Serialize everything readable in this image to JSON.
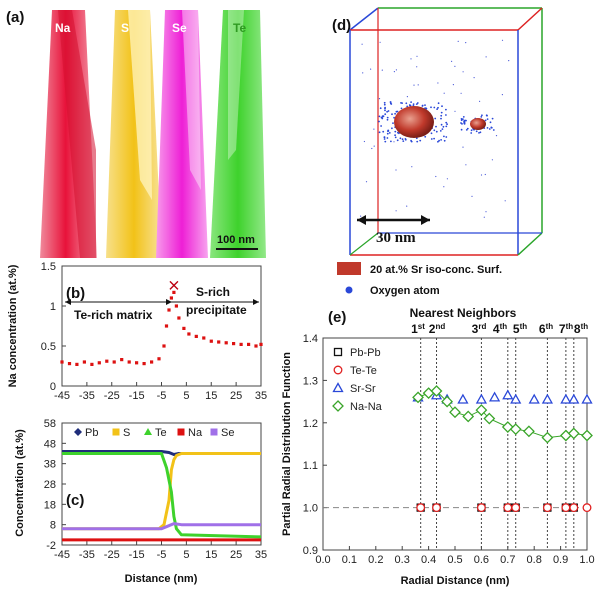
{
  "colors": {
    "Na": "#e8123a",
    "S": "#f2c218",
    "Se": "#ee1fd6",
    "Te": "#3ed22c",
    "Pb": "#1f2d7a",
    "red_series": "#dd1111",
    "blue_marker": "#2a48d8",
    "green_marker": "#3aa52a",
    "precip": "#c0392b"
  },
  "panel_a": {
    "label": "(a)",
    "columns": [
      "Na",
      "S",
      "Se",
      "Te"
    ],
    "scale_bar": "100 nm"
  },
  "panel_d": {
    "label": "(d)",
    "scale_bar": "30 nm",
    "legend": [
      "20 at.% Sr iso-conc. Surf.",
      "Oxygen atom"
    ]
  },
  "chart_data": [
    {
      "type": "scatter",
      "panel": "(b)",
      "ylabel": "Na concentration (at.%)",
      "ylim": [
        0,
        1.5
      ],
      "xlim": [
        -45,
        35
      ],
      "xticks": [
        -45,
        -35,
        -25,
        -15,
        -5,
        5,
        15,
        25,
        35
      ],
      "yticks": [
        "0",
        "0.5",
        "1",
        "1.5"
      ],
      "annotations": [
        "Te-rich matrix",
        "S-rich precipitate"
      ],
      "series": [
        {
          "color": "#dd1111",
          "x": [
            -45,
            -42,
            -39,
            -36,
            -33,
            -30,
            -27,
            -24,
            -21,
            -18,
            -15,
            -12,
            -9,
            -6,
            -4,
            -3,
            -2,
            -1,
            0,
            1,
            2,
            4,
            6,
            9,
            12,
            15,
            18,
            21,
            24,
            27,
            30,
            33,
            35
          ],
          "y": [
            0.3,
            0.28,
            0.27,
            0.3,
            0.27,
            0.29,
            0.31,
            0.3,
            0.33,
            0.3,
            0.29,
            0.28,
            0.3,
            0.34,
            0.5,
            0.75,
            0.95,
            1.1,
            1.17,
            1.0,
            0.85,
            0.72,
            0.65,
            0.62,
            0.6,
            0.56,
            0.55,
            0.54,
            0.53,
            0.52,
            0.52,
            0.5,
            0.52
          ]
        }
      ]
    },
    {
      "type": "line",
      "panel": "(c)",
      "xlabel": "Distance (nm)",
      "ylabel": "Concentration (at.%)",
      "ylim": [
        -2,
        58
      ],
      "xlim": [
        -45,
        35
      ],
      "xticks": [
        -45,
        -35,
        -25,
        -15,
        -5,
        5,
        15,
        25,
        35
      ],
      "yticks": [
        -2,
        8,
        18,
        28,
        38,
        48,
        58
      ],
      "series": [
        {
          "name": "Pb",
          "color": "#1f2d7a",
          "x": [
            -45,
            -5,
            -2,
            0,
            2,
            35
          ],
          "y": [
            44,
            44,
            43.5,
            42.5,
            43,
            43
          ]
        },
        {
          "name": "S",
          "color": "#f2c218",
          "x": [
            -45,
            -6,
            -4,
            -2,
            -1,
            0,
            1,
            3,
            35
          ],
          "y": [
            6,
            6,
            8,
            20,
            35,
            40,
            42,
            43,
            43
          ]
        },
        {
          "name": "Te",
          "color": "#3ed22c",
          "x": [
            -45,
            -5,
            -3,
            -1,
            0,
            1,
            3,
            35
          ],
          "y": [
            43,
            43,
            36,
            24,
            12,
            6,
            3,
            2
          ]
        },
        {
          "name": "Na",
          "color": "#dd1111",
          "x": [
            -45,
            35
          ],
          "y": [
            0.5,
            0.5
          ]
        },
        {
          "name": "Se",
          "color": "#a070e8",
          "x": [
            -45,
            -5,
            -3,
            0,
            3,
            35
          ],
          "y": [
            6,
            6,
            7,
            8.5,
            8,
            8
          ]
        }
      ]
    },
    {
      "type": "scatter",
      "panel": "(e)",
      "xlabel": "Radial Distance (nm)",
      "ylabel": "Partial Radial Distribution Function",
      "xlim": [
        0,
        1.0
      ],
      "ylim": [
        0.9,
        1.4
      ],
      "xticks": [
        "0.0",
        "0.1",
        "0.2",
        "0.3",
        "0.4",
        "0.5",
        "0.6",
        "0.7",
        "0.8",
        "0.9",
        "1.0"
      ],
      "yticks": [
        "0.9",
        "1.0",
        "1.1",
        "1.2",
        "1.3",
        "1.4"
      ],
      "neighbors_title": "Nearest Neighbors",
      "neighbors": [
        {
          "n": "1",
          "sup": "st",
          "x": 0.37
        },
        {
          "n": "2",
          "sup": "nd",
          "x": 0.43
        },
        {
          "n": "3",
          "sup": "rd",
          "x": 0.6
        },
        {
          "n": "4",
          "sup": "th",
          "x": 0.7
        },
        {
          "n": "5",
          "sup": "th",
          "x": 0.73
        },
        {
          "n": "6",
          "sup": "th",
          "x": 0.85
        },
        {
          "n": "7",
          "sup": "th",
          "x": 0.92
        },
        {
          "n": "8",
          "sup": "th",
          "x": 0.95
        }
      ],
      "series": [
        {
          "name": "Pb-Pb",
          "marker": "square",
          "color": "#111111",
          "x": [
            0.37,
            0.43,
            0.6,
            0.7,
            0.73,
            0.85,
            0.92,
            0.95
          ],
          "y": [
            1.0,
            1.0,
            1.0,
            1.0,
            1.0,
            1.0,
            1.0,
            1.0
          ]
        },
        {
          "name": "Te-Te",
          "marker": "circle",
          "color": "#e02020",
          "x": [
            0.37,
            0.43,
            0.6,
            0.7,
            0.73,
            0.85,
            0.92,
            0.95,
            1.0
          ],
          "y": [
            1.0,
            1.0,
            1.0,
            1.0,
            1.0,
            1.0,
            1.0,
            1.0,
            1.0
          ]
        },
        {
          "name": "Sr-Sr",
          "marker": "triangle",
          "color": "#2a48d8",
          "x": [
            0.36,
            0.43,
            0.47,
            0.53,
            0.6,
            0.65,
            0.7,
            0.73,
            0.8,
            0.85,
            0.92,
            0.95,
            1.0
          ],
          "y": [
            1.26,
            1.265,
            1.255,
            1.255,
            1.255,
            1.26,
            1.265,
            1.255,
            1.255,
            1.255,
            1.255,
            1.255,
            1.255
          ]
        },
        {
          "name": "Na-Na",
          "marker": "diamond",
          "color": "#3aa52a",
          "x": [
            0.36,
            0.4,
            0.43,
            0.47,
            0.5,
            0.55,
            0.6,
            0.63,
            0.7,
            0.73,
            0.78,
            0.85,
            0.92,
            0.95,
            1.0
          ],
          "y": [
            1.26,
            1.27,
            1.275,
            1.25,
            1.225,
            1.215,
            1.23,
            1.21,
            1.19,
            1.185,
            1.18,
            1.165,
            1.17,
            1.175,
            1.17
          ]
        }
      ]
    }
  ]
}
